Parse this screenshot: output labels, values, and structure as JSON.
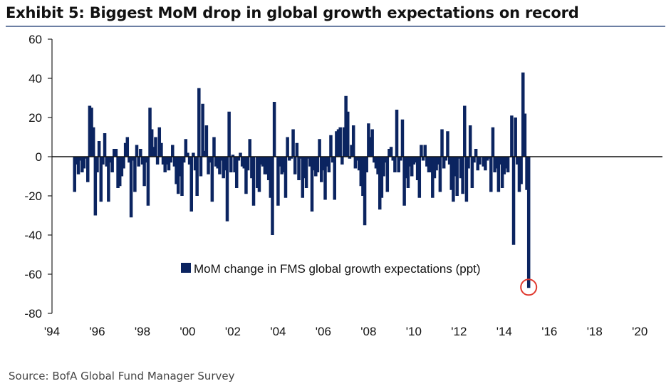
{
  "header": {
    "title": "Exhibit 5: Biggest MoM drop in global growth expectations on record",
    "source": "Source: BofA Global Fund Manager Survey"
  },
  "colors": {
    "bar": "#0b2460",
    "rule": "#6c7fa3",
    "highlight": "#e0392f"
  },
  "chart_data": {
    "type": "bar",
    "ylim": [
      -80,
      60
    ],
    "yticks": [
      60,
      40,
      20,
      0,
      -20,
      -40,
      -60,
      -80
    ],
    "ytick_labels": [
      "60",
      "40",
      "20",
      "0",
      "-20",
      "-40",
      "-60",
      "-80"
    ],
    "xlim": [
      1994.0,
      2021.0
    ],
    "xticks": [
      1994,
      1996,
      1998,
      2000,
      2002,
      2004,
      2006,
      2008,
      2010,
      2012,
      2014,
      2016,
      2018,
      2020
    ],
    "xtick_labels": [
      "'94",
      "'96",
      "'98",
      "'00",
      "'02",
      "'04",
      "'06",
      "'08",
      "'10",
      "'12",
      "'14",
      "'16",
      "'18",
      "'20"
    ],
    "grid": false,
    "legend": {
      "label": "MoM change in FMS global growth expectations (ppt)",
      "position": "center"
    },
    "series": [
      {
        "start_year": 1995,
        "start_month": 1,
        "values": [
          -18,
          -4,
          -9,
          -2,
          -8,
          -6,
          -1,
          -13,
          26,
          25,
          15,
          -30,
          -8,
          8,
          -23,
          -4,
          12,
          -5,
          -23,
          -3,
          -8,
          4,
          4,
          -16,
          -15,
          -10,
          -6,
          7,
          10,
          -3,
          -31,
          -2,
          -18,
          6,
          -5,
          4,
          -4,
          -15,
          -3,
          -25,
          25,
          14,
          5,
          10,
          -4,
          15,
          7,
          -4,
          -8,
          -4,
          -7,
          -3,
          6,
          -5,
          -14,
          -19,
          -10,
          -20,
          -3,
          9,
          2,
          -4,
          -28,
          2,
          -7,
          -20,
          35,
          -10,
          27,
          3,
          16,
          -9,
          -3,
          -23,
          10,
          -5,
          -6,
          -9,
          -2,
          -11,
          -7,
          -33,
          23,
          -8,
          1,
          -8,
          -16,
          -2,
          2,
          -5,
          -6,
          -19,
          -7,
          9,
          -11,
          -25,
          0,
          -16,
          -18,
          -4,
          -5,
          -9,
          -9,
          -12,
          -21,
          -40,
          28,
          0,
          -25,
          -5,
          -9,
          -8,
          -21,
          10,
          -2,
          -1,
          14,
          -9,
          7,
          -12,
          -1,
          -21,
          -11,
          -16,
          -1,
          -5,
          -28,
          -7,
          -10,
          -8,
          9,
          -13,
          -7,
          -22,
          -5,
          -8,
          11,
          -3,
          -22,
          13,
          14,
          15,
          -4,
          15,
          31,
          23,
          -1,
          6,
          16,
          -6,
          -2,
          -7,
          -15,
          -20,
          -35,
          -8,
          17,
          10,
          14,
          -3,
          -6,
          -9,
          -27,
          -21,
          -10,
          -3,
          -18,
          4,
          5,
          -2,
          -8,
          24,
          -8,
          -2,
          19,
          -25,
          -11,
          -16,
          -5,
          -10,
          -4,
          -3,
          -12,
          -21,
          6,
          -2,
          6,
          -5,
          -8,
          -8,
          -21,
          -11,
          -7,
          -4,
          -18,
          14,
          -6,
          -2,
          13,
          -4,
          -17,
          -23,
          -10,
          -20,
          -1,
          -11,
          -19,
          26,
          -23,
          -6,
          16,
          -16,
          -3,
          4,
          -7,
          -4,
          0,
          -5,
          -7,
          -2,
          -1,
          -18,
          15,
          -8,
          -6,
          -18,
          -4,
          -16,
          -9,
          -6,
          -8,
          0,
          21,
          -45,
          20,
          -4,
          -18,
          -14,
          43,
          22,
          -17,
          -67
        ]
      }
    ]
  }
}
